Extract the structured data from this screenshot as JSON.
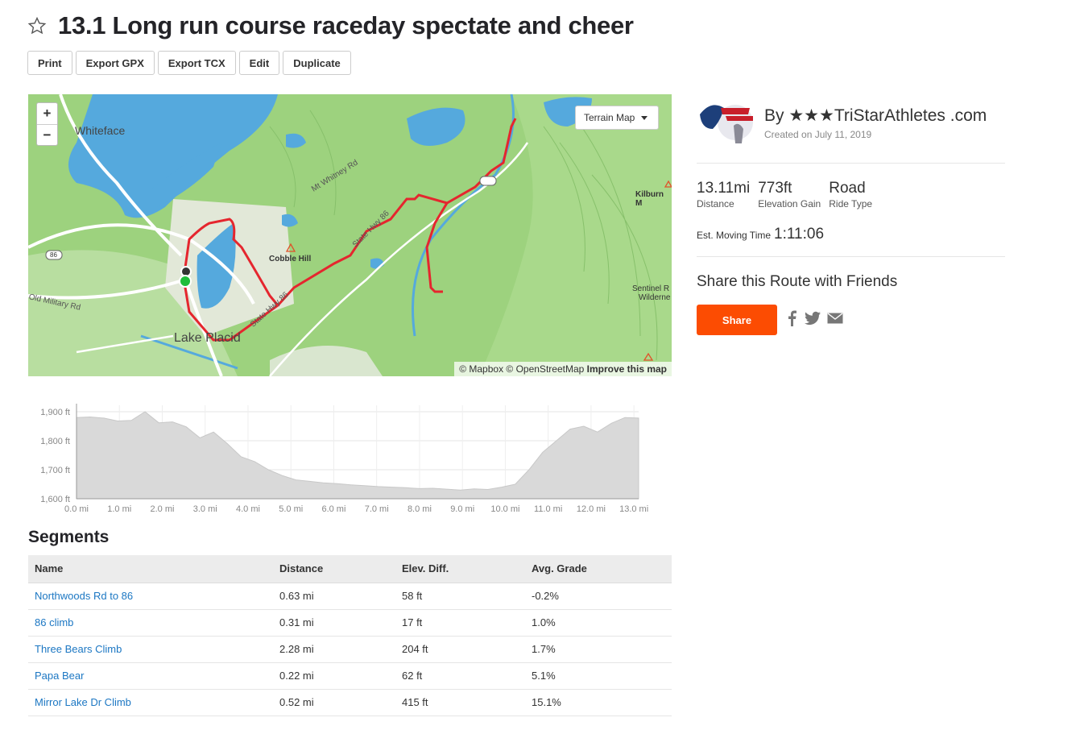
{
  "header": {
    "title": "13.1 Long run course raceday spectate and cheer",
    "star_icon": "star-outline-icon"
  },
  "toolbar": {
    "print": "Print",
    "export_gpx": "Export GPX",
    "export_tcx": "Export TCX",
    "edit": "Edit",
    "duplicate": "Duplicate"
  },
  "map": {
    "zoom_in": "+",
    "zoom_out": "−",
    "terrain_label": "Terrain Map",
    "attribution": "© Mapbox © OpenStreetMap",
    "improve": "Improve this map",
    "labels": {
      "whiteface": "Whiteface",
      "lake_placid": "Lake Placid",
      "cobble_hill": "Cobble Hill",
      "mt_whitney": "Mt Whitney Rd",
      "hwy86_a": "State Hwy 86",
      "hwy86_b": "State Hwy 86",
      "old_military": "Old Military Rd",
      "kilburn": "Kilburn M",
      "sentinel1": "Sentinel R",
      "sentinel2": "Wilderne",
      "shield_86": "86"
    },
    "route_color": "#e5262e",
    "water_color": "#55a9dd",
    "land_color": "#9dd27e"
  },
  "elevation": {
    "y_ticks": [
      "1,900 ft",
      "1,800 ft",
      "1,700 ft",
      "1,600 ft"
    ],
    "x_ticks": [
      "0.0 mi",
      "1.0 mi",
      "2.0 mi",
      "3.0 mi",
      "4.0 mi",
      "5.0 mi",
      "6.0 mi",
      "7.0 mi",
      "8.0 mi",
      "9.0 mi",
      "10.0 mi",
      "11.0 mi",
      "12.0 mi",
      "13.0 mi"
    ],
    "profile_ft": [
      1880,
      1882,
      1878,
      1868,
      1870,
      1900,
      1862,
      1865,
      1848,
      1810,
      1830,
      1790,
      1745,
      1728,
      1700,
      1680,
      1665,
      1660,
      1655,
      1652,
      1648,
      1645,
      1642,
      1640,
      1638,
      1635,
      1636,
      1633,
      1630,
      1634,
      1632,
      1640,
      1650,
      1700,
      1760,
      1800,
      1840,
      1850,
      1830,
      1860,
      1880,
      1878
    ]
  },
  "segments": {
    "title": "Segments",
    "columns": [
      "Name",
      "Distance",
      "Elev. Diff.",
      "Avg. Grade"
    ],
    "rows": [
      {
        "name": "Northwoods Rd to 86",
        "distance": "0.63 mi",
        "elev": "58 ft",
        "grade": "-0.2%"
      },
      {
        "name": "86 climb",
        "distance": "0.31 mi",
        "elev": "17 ft",
        "grade": "1.0%"
      },
      {
        "name": "Three Bears Climb",
        "distance": "2.28 mi",
        "elev": "204 ft",
        "grade": "1.7%"
      },
      {
        "name": "Papa Bear",
        "distance": "0.22 mi",
        "elev": "62 ft",
        "grade": "5.1%"
      },
      {
        "name": "Mirror Lake Dr Climb",
        "distance": "0.52 mi",
        "elev": "415 ft",
        "grade": "15.1%"
      }
    ]
  },
  "sidebar": {
    "by_label": "By ★★★TriStarAthletes .com",
    "created": "Created on July 11, 2019",
    "stats": [
      {
        "value": "13.11mi",
        "label": "Distance"
      },
      {
        "value": "773ft",
        "label": "Elevation Gain"
      },
      {
        "value": "Road",
        "label": "Ride Type"
      }
    ],
    "moving_label": "Est. Moving Time",
    "moving_value": "1:11:06",
    "share_title": "Share this Route with Friends",
    "share_button": "Share",
    "accent": "#fc4c02",
    "social_icons": [
      "facebook-icon",
      "twitter-icon",
      "email-icon"
    ]
  }
}
